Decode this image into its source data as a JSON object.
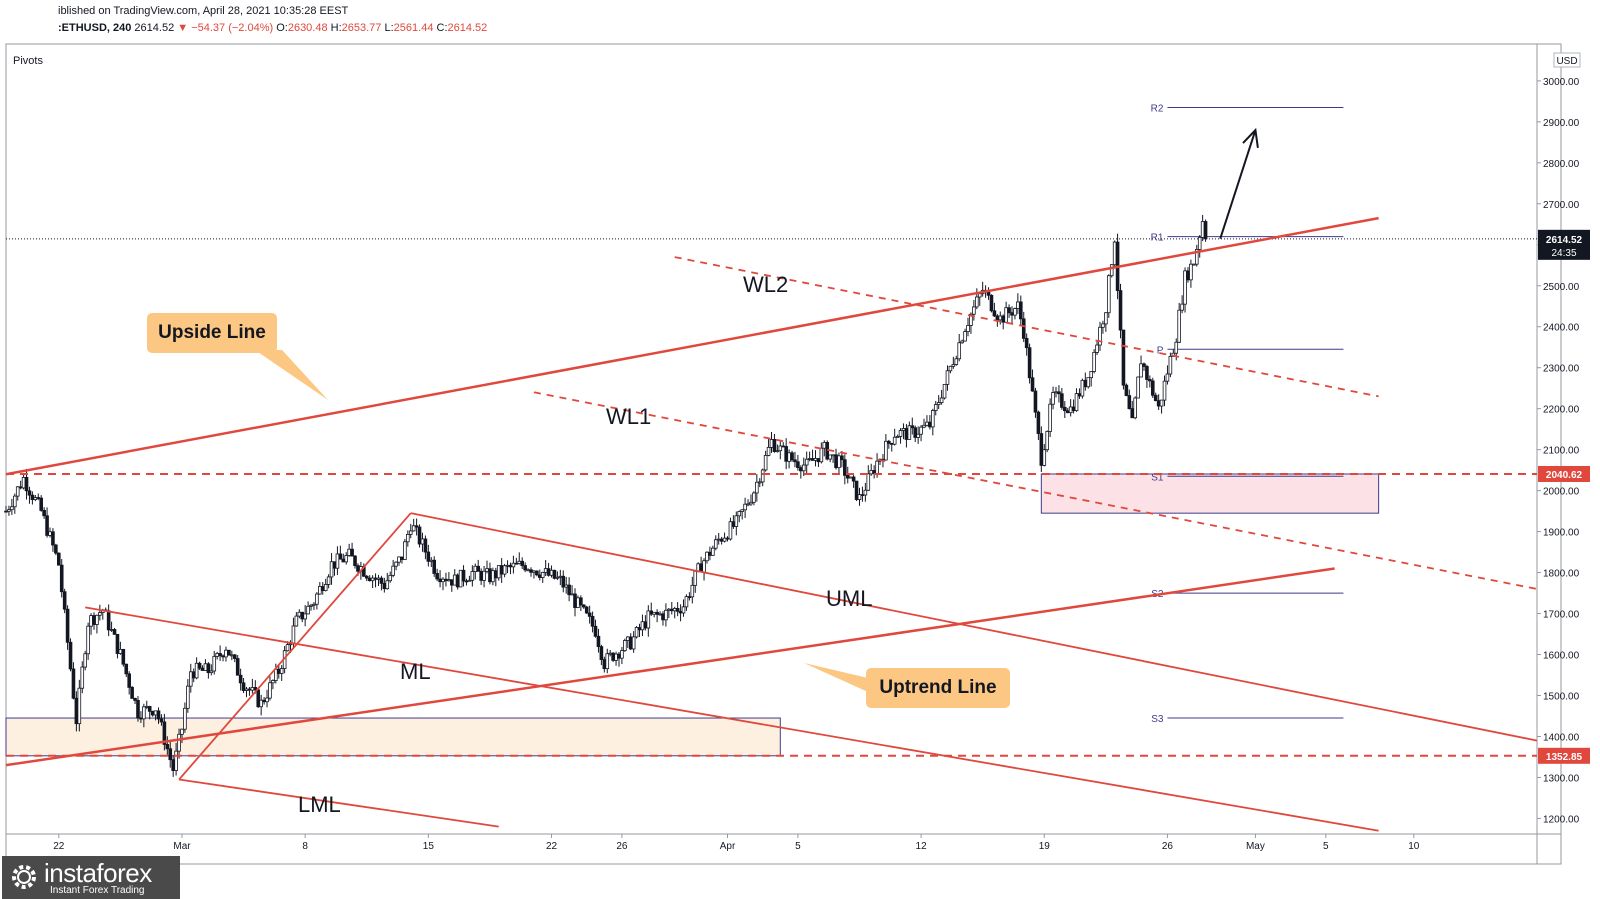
{
  "header": {
    "published": "iblished on TradingView.com, April 28, 2021 10:35:28 EEST",
    "symbol": ":ETHUSD, 240",
    "price": "2614.52",
    "change": "▼ −54.37 (−2.04%)",
    "o_label": "O:",
    "o_value": "2630.48",
    "h_label": "H:",
    "h_value": "2653.77",
    "l_label": "L:",
    "l_value": "2561.44",
    "c_label": "C:",
    "c_value": "2614.52"
  },
  "indicator_label": "Pivots",
  "currency": "USD",
  "price_tag": {
    "value": "2614.52",
    "countdown": "24:35"
  },
  "level_tags": [
    "2040.62",
    "1352.85"
  ],
  "annotations": {
    "upside_line": "Upside Line",
    "uptrend_line": "Uptrend Line",
    "wl1": "WL1",
    "wl2": "WL2",
    "uml": "UML",
    "ml": "ML",
    "lml": "LML"
  },
  "pivot_labels": [
    "R2",
    "R1",
    "P",
    "S1",
    "S2",
    "S3"
  ],
  "logo": {
    "brand": "instaforex",
    "tagline": "Instant Forex Trading"
  },
  "colors": {
    "trend": "#e0483d",
    "candle": "#131722",
    "pivot": "#3f3a8c",
    "callout": "#fbc783",
    "zone_low": "#fdf0e1",
    "zone_high": "#fce2e6"
  },
  "chart_data": {
    "type": "candlestick",
    "symbol": "ETHUSD",
    "timeframe": "240",
    "y_ticks": [
      1200,
      1300,
      1400,
      1500,
      1600,
      1700,
      1800,
      1900,
      2000,
      2100,
      2200,
      2300,
      2400,
      2500,
      2600,
      2700,
      2800,
      2900,
      3000
    ],
    "y_tick_labels": [
      "1200.00",
      "1300.00",
      "1400.00",
      "1500.00",
      "1600.00",
      "1700.00",
      "1800.00",
      "1900.00",
      "2000.00",
      "2100.00",
      "2200.00",
      "2300.00",
      "2400.00",
      "2500.00",
      "2600.00",
      "2700.00",
      "2800.00",
      "2900.00",
      "3000.00"
    ],
    "x_ticks": [
      {
        "label": "22",
        "date": "2021-02-22"
      },
      {
        "label": "Mar",
        "date": "2021-03-01"
      },
      {
        "label": "8",
        "date": "2021-03-08"
      },
      {
        "label": "15",
        "date": "2021-03-15"
      },
      {
        "label": "22",
        "date": "2021-03-22"
      },
      {
        "label": "26",
        "date": "2021-03-26"
      },
      {
        "label": "Apr",
        "date": "2021-04-01"
      },
      {
        "label": "5",
        "date": "2021-04-05"
      },
      {
        "label": "12",
        "date": "2021-04-12"
      },
      {
        "label": "19",
        "date": "2021-04-19"
      },
      {
        "label": "26",
        "date": "2021-04-26"
      },
      {
        "label": "May",
        "date": "2021-05-01"
      },
      {
        "label": "5",
        "date": "2021-05-05"
      },
      {
        "label": "10",
        "date": "2021-05-10"
      }
    ],
    "y_range": [
      1162,
      3090
    ],
    "x_range": [
      "2021-02-19T00:00",
      "2021-05-17T00:00"
    ],
    "price_path": [
      [
        "2021-02-19T00:00",
        1950
      ],
      [
        "2021-02-20T00:00",
        2030
      ],
      [
        "2021-02-21T00:00",
        1950
      ],
      [
        "2021-02-22T00:00",
        1820
      ],
      [
        "2021-02-23T00:00",
        1440
      ],
      [
        "2021-02-23T16:00",
        1680
      ],
      [
        "2021-02-24T12:00",
        1710
      ],
      [
        "2021-02-25T12:00",
        1600
      ],
      [
        "2021-02-26T12:00",
        1460
      ],
      [
        "2021-02-27T12:00",
        1470
      ],
      [
        "2021-02-28T12:00",
        1320
      ],
      [
        "2021-03-01T00:00",
        1420
      ],
      [
        "2021-03-01T12:00",
        1560
      ],
      [
        "2021-03-02T12:00",
        1560
      ],
      [
        "2021-03-03T12:00",
        1620
      ],
      [
        "2021-03-04T12:00",
        1530
      ],
      [
        "2021-03-05T12:00",
        1480
      ],
      [
        "2021-03-06T12:00",
        1560
      ],
      [
        "2021-03-07T12:00",
        1680
      ],
      [
        "2021-03-08T12:00",
        1730
      ],
      [
        "2021-03-09T12:00",
        1820
      ],
      [
        "2021-03-10T12:00",
        1840
      ],
      [
        "2021-03-11T12:00",
        1800
      ],
      [
        "2021-03-12T12:00",
        1770
      ],
      [
        "2021-03-13T12:00",
        1840
      ],
      [
        "2021-03-14T00:00",
        1920
      ],
      [
        "2021-03-14T12:00",
        1880
      ],
      [
        "2021-03-15T12:00",
        1800
      ],
      [
        "2021-03-16T12:00",
        1780
      ],
      [
        "2021-03-17T12:00",
        1800
      ],
      [
        "2021-03-18T12:00",
        1790
      ],
      [
        "2021-03-19T12:00",
        1810
      ],
      [
        "2021-03-20T12:00",
        1820
      ],
      [
        "2021-03-21T12:00",
        1800
      ],
      [
        "2021-03-22T12:00",
        1780
      ],
      [
        "2021-03-23T12:00",
        1720
      ],
      [
        "2021-03-24T12:00",
        1660
      ],
      [
        "2021-03-25T00:00",
        1580
      ],
      [
        "2021-03-25T12:00",
        1600
      ],
      [
        "2021-03-26T12:00",
        1630
      ],
      [
        "2021-03-27T12:00",
        1690
      ],
      [
        "2021-03-28T12:00",
        1700
      ],
      [
        "2021-03-29T12:00",
        1720
      ],
      [
        "2021-03-30T12:00",
        1820
      ],
      [
        "2021-03-31T12:00",
        1880
      ],
      [
        "2021-04-01T12:00",
        1920
      ],
      [
        "2021-04-02T12:00",
        2000
      ],
      [
        "2021-04-03T12:00",
        2120
      ],
      [
        "2021-04-04T12:00",
        2080
      ],
      [
        "2021-04-05T12:00",
        2060
      ],
      [
        "2021-04-06T12:00",
        2100
      ],
      [
        "2021-04-07T12:00",
        2060
      ],
      [
        "2021-04-08T12:00",
        1980
      ],
      [
        "2021-04-09T12:00",
        2070
      ],
      [
        "2021-04-10T12:00",
        2140
      ],
      [
        "2021-04-11T12:00",
        2140
      ],
      [
        "2021-04-12T12:00",
        2160
      ],
      [
        "2021-04-13T12:00",
        2280
      ],
      [
        "2021-04-14T12:00",
        2400
      ],
      [
        "2021-04-15T12:00",
        2490
      ],
      [
        "2021-04-16T12:00",
        2420
      ],
      [
        "2021-04-17T12:00",
        2450
      ],
      [
        "2021-04-17T20:00",
        2390
      ],
      [
        "2021-04-18T12:00",
        2180
      ],
      [
        "2021-04-18T20:00",
        2080
      ],
      [
        "2021-04-19T12:00",
        2230
      ],
      [
        "2021-04-20T12:00",
        2200
      ],
      [
        "2021-04-21T12:00",
        2280
      ],
      [
        "2021-04-22T12:00",
        2450
      ],
      [
        "2021-04-23T00:00",
        2620
      ],
      [
        "2021-04-23T12:00",
        2250
      ],
      [
        "2021-04-24T00:00",
        2160
      ],
      [
        "2021-04-24T12:00",
        2320
      ],
      [
        "2021-04-25T12:00",
        2200
      ],
      [
        "2021-04-26T12:00",
        2380
      ],
      [
        "2021-04-27T00:00",
        2520
      ],
      [
        "2021-04-27T12:00",
        2560
      ],
      [
        "2021-04-28T00:00",
        2660
      ],
      [
        "2021-04-28T06:00",
        2614.52
      ]
    ],
    "last_price": 2614.52,
    "horizontal_levels": [
      2040.62,
      1352.85
    ],
    "pivots": {
      "R2": 2935,
      "R1": 2620,
      "P": 2345,
      "S1": 2035,
      "S2": 1750,
      "S3": 1445
    },
    "zones": [
      {
        "from": "2021-02-19T00:00",
        "to": "2021-04-04T00:00",
        "low": 1352.85,
        "high": 1445
      },
      {
        "from": "2021-04-18T20:00",
        "to": "2021-05-08T00:00",
        "low": 1945,
        "high": 2040.62
      }
    ],
    "trend_lines": [
      {
        "name": "Upside Line",
        "p1": [
          "2021-02-19T00:00",
          2040
        ],
        "p2": [
          "2021-05-08T00:00",
          2665
        ]
      },
      {
        "name": "Uptrend Line",
        "p1": [
          "2021-02-19T00:00",
          1330
        ],
        "p2": [
          "2021-05-05T12:00",
          1810
        ]
      },
      {
        "name": "WL1",
        "p1": [
          "2021-03-21T00:00",
          2240
        ],
        "p2": [
          "2021-05-17T00:00",
          1760
        ]
      },
      {
        "name": "WL2",
        "p1": [
          "2021-03-29T00:00",
          2570
        ],
        "p2": [
          "2021-05-08T00:00",
          2230
        ]
      },
      {
        "name": "UML",
        "p1": [
          "2021-03-14T00:00",
          1945
        ],
        "p2": [
          "2021-05-17T00:00",
          1390
        ]
      },
      {
        "name": "ML",
        "p1": [
          "2021-02-23T12:00",
          1715
        ],
        "p2": [
          "2021-05-08T00:00",
          1170
        ]
      },
      {
        "name": "LML",
        "p1": [
          "2021-02-28T20:00",
          1295
        ],
        "p2": [
          "2021-03-19T00:00",
          1180
        ]
      },
      {
        "name": "handle",
        "p1": [
          "2021-02-28T20:00",
          1295
        ],
        "p2": [
          "2021-03-14T00:00",
          1945
        ]
      }
    ],
    "projection_arrow": {
      "from": [
        "2021-04-29T00:00",
        2615
      ],
      "to": [
        "2021-05-01T00:00",
        2880
      ]
    }
  }
}
